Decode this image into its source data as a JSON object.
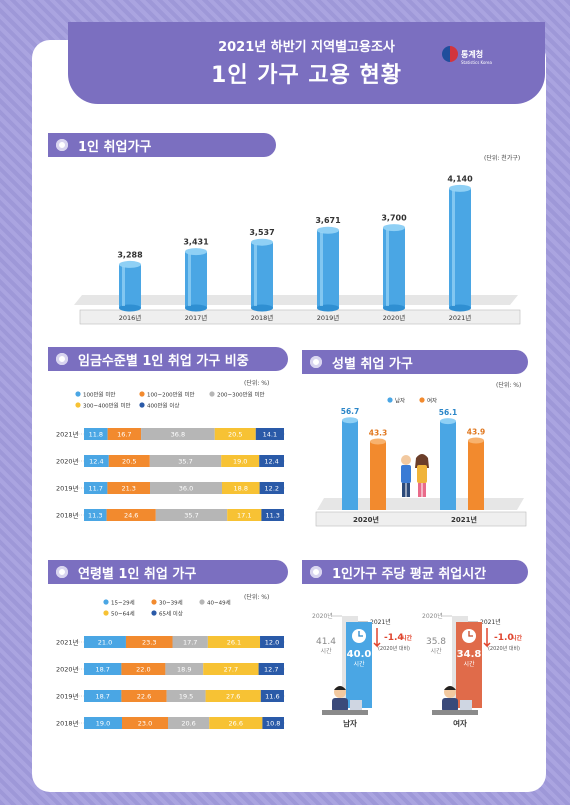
{
  "header": {
    "subtitle": "2021년 하반기 지역별고용조사",
    "title": "1인 가구 고용 현황",
    "logo_text": "통계청",
    "logo_sub": "Statistics Korea"
  },
  "colors": {
    "purple": "#7b6fc0",
    "blue": "#4aa6e4",
    "orange": "#f28a2e",
    "gray": "#b6b6b6",
    "yellow": "#f7c234",
    "navy": "#2a5aa8",
    "red": "#e0452e"
  },
  "sections": {
    "s1": {
      "title": "1인 취업가구",
      "unit": "(단위: 천가구)"
    },
    "s2": {
      "title": "임금수준별 1인 취업 가구 비중",
      "unit": "(단위: %)"
    },
    "s3": {
      "title": "성별 취업 가구",
      "unit": "(단위: %)"
    },
    "s4": {
      "title": "연령별 1인 취업 가구",
      "unit": "(단위: %)"
    },
    "s5": {
      "title": "1인가구 주당 평균 취업시간"
    }
  },
  "chart_data": [
    {
      "type": "bar",
      "categories": [
        "2016년",
        "2017년",
        "2018년",
        "2019년",
        "2020년",
        "2021년"
      ],
      "values": [
        3288,
        3431,
        3537,
        3671,
        3700,
        4140
      ],
      "value_labels": [
        "3,288",
        "3,431",
        "3,537",
        "3,671",
        "3,700",
        "4,140"
      ]
    },
    {
      "type": "bar",
      "stacked": true,
      "orientation": "horizontal",
      "legend": [
        "100만원 미만",
        "100~200만원 미만",
        "200~300만원 미만",
        "300~400만원 미만",
        "400만원 이상"
      ],
      "categories": [
        "2021년",
        "2020년",
        "2019년",
        "2018년"
      ],
      "rows": [
        [
          11.8,
          16.7,
          36.8,
          20.5,
          14.1
        ],
        [
          12.4,
          20.5,
          35.7,
          19.0,
          12.4
        ],
        [
          11.7,
          21.3,
          36.0,
          18.8,
          12.2
        ],
        [
          11.3,
          24.6,
          35.7,
          17.1,
          11.3
        ]
      ]
    },
    {
      "type": "bar",
      "categories": [
        "2020년",
        "2021년"
      ],
      "legend": [
        "남자",
        "여자"
      ],
      "series": [
        {
          "name": "남자",
          "values": [
            56.7,
            56.1
          ]
        },
        {
          "name": "여자",
          "values": [
            43.3,
            43.9
          ]
        }
      ]
    },
    {
      "type": "bar",
      "stacked": true,
      "orientation": "horizontal",
      "legend": [
        "15~29세",
        "30~39세",
        "40~49세",
        "50~64세",
        "65세 이상"
      ],
      "categories": [
        "2021년",
        "2020년",
        "2019년",
        "2018년"
      ],
      "rows": [
        [
          21.0,
          23.3,
          17.7,
          26.1,
          12.0
        ],
        [
          18.7,
          22.0,
          18.9,
          27.7,
          12.7
        ],
        [
          18.7,
          22.6,
          19.5,
          27.6,
          11.6
        ],
        [
          19.0,
          23.0,
          20.6,
          26.6,
          10.8
        ]
      ]
    }
  ],
  "hours": {
    "label_2020": "2020년",
    "label_2021": "2021년",
    "men": {
      "prev": "41.4",
      "curr": "40.0",
      "diff": "-1.4",
      "label": "남자"
    },
    "women": {
      "prev": "35.8",
      "curr": "34.8",
      "diff": "-1.0",
      "label": "여자"
    },
    "unit": "시간",
    "compare": "(2020년 대비)"
  }
}
